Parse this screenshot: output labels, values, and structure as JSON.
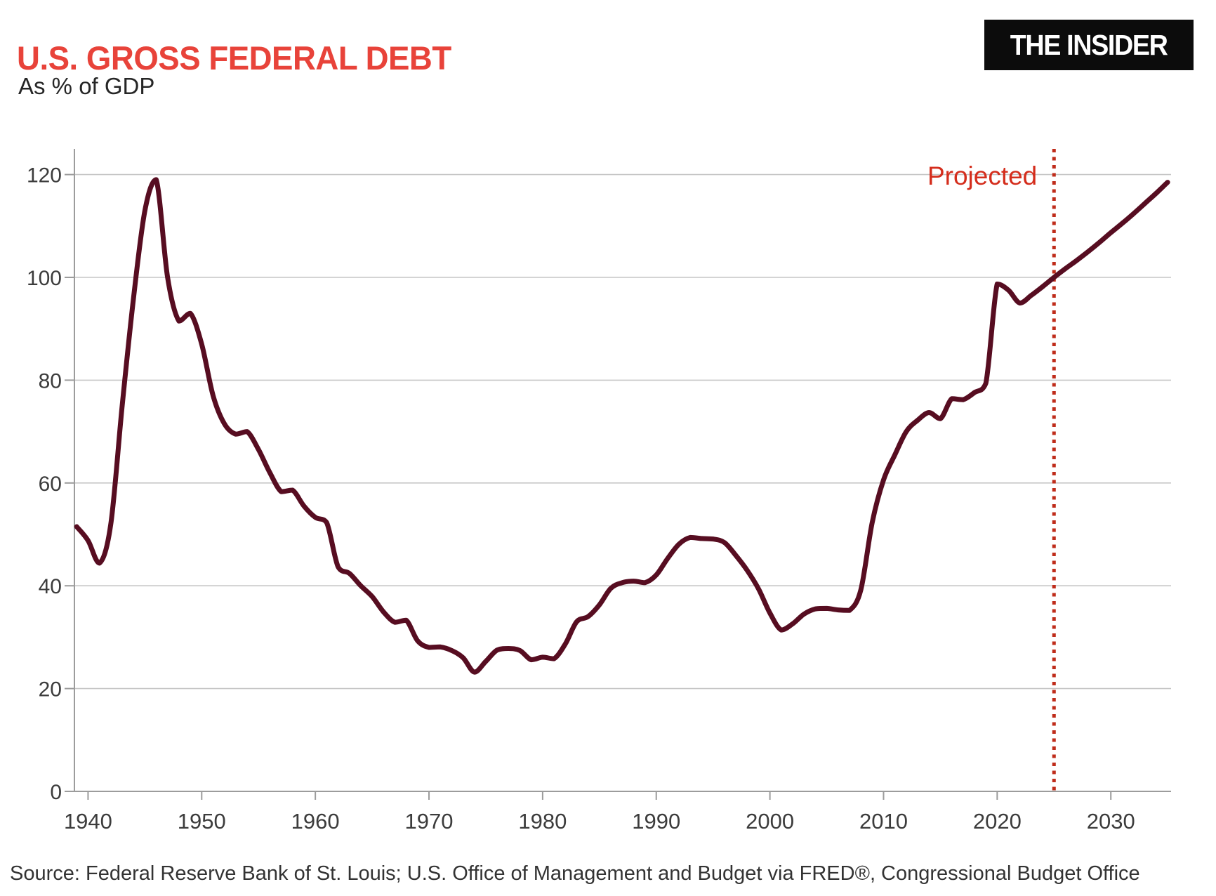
{
  "header": {
    "title": "U.S. GROSS FEDERAL DEBT",
    "subtitle": "As % of GDP",
    "logo_text": "THE INSIDER"
  },
  "footer": {
    "source": "Source: Federal Reserve Bank of St. Louis; U.S. Office of Management and Budget via FRED®, Congressional Budget Office"
  },
  "colors": {
    "title_red": "#e8433a",
    "line_maroon": "#570d21",
    "projection_red": "#d42d1c",
    "projection_dots": "#bf2c1a",
    "grid": "#c6c6c6",
    "axis": "#9c9c9c",
    "tick_text": "#3c3c3c",
    "logo_bg": "#0c0c0c",
    "logo_text": "#ffffff"
  },
  "chart_data": {
    "type": "line",
    "title": "U.S. GROSS FEDERAL DEBT",
    "subtitle": "As % of GDP",
    "xlabel": "",
    "ylabel": "As % of GDP",
    "xlim": [
      1938.8,
      2035.3
    ],
    "ylim": [
      0,
      125
    ],
    "xticks": [
      1940,
      1950,
      1960,
      1970,
      1980,
      1990,
      2000,
      2010,
      2020,
      2030
    ],
    "yticks": [
      0,
      20,
      40,
      60,
      80,
      100,
      120
    ],
    "grid": "horizontal",
    "legend_position": "none",
    "annotations": {
      "projected_label": "Projected",
      "projection_start_year": 2025
    },
    "series": [
      {
        "name": "Gross federal debt as % of GDP",
        "points": [
          [
            1939,
            51.5
          ],
          [
            1940,
            48.8
          ],
          [
            1941,
            44.4
          ],
          [
            1942,
            52.0
          ],
          [
            1943,
            75.0
          ],
          [
            1944,
            96.0
          ],
          [
            1945,
            113.0
          ],
          [
            1946,
            119.0
          ],
          [
            1947,
            100.0
          ],
          [
            1948,
            91.5
          ],
          [
            1949,
            93.0
          ],
          [
            1950,
            87.0
          ],
          [
            1951,
            77.0
          ],
          [
            1952,
            71.5
          ],
          [
            1953,
            69.5
          ],
          [
            1954,
            70.0
          ],
          [
            1955,
            66.5
          ],
          [
            1956,
            62.0
          ],
          [
            1957,
            58.3
          ],
          [
            1958,
            58.6
          ],
          [
            1959,
            55.5
          ],
          [
            1960,
            53.3
          ],
          [
            1961,
            52.3
          ],
          [
            1962,
            43.7
          ],
          [
            1963,
            42.4
          ],
          [
            1964,
            40.0
          ],
          [
            1965,
            37.9
          ],
          [
            1966,
            34.9
          ],
          [
            1967,
            32.9
          ],
          [
            1968,
            33.3
          ],
          [
            1969,
            29.3
          ],
          [
            1970,
            28.0
          ],
          [
            1971,
            28.1
          ],
          [
            1972,
            27.4
          ],
          [
            1973,
            26.0
          ],
          [
            1974,
            23.2
          ],
          [
            1975,
            25.3
          ],
          [
            1976,
            27.5
          ],
          [
            1977,
            27.8
          ],
          [
            1978,
            27.4
          ],
          [
            1979,
            25.6
          ],
          [
            1980,
            26.1
          ],
          [
            1981,
            25.8
          ],
          [
            1982,
            28.7
          ],
          [
            1983,
            33.0
          ],
          [
            1984,
            34.0
          ],
          [
            1985,
            36.3
          ],
          [
            1986,
            39.5
          ],
          [
            1987,
            40.6
          ],
          [
            1988,
            40.9
          ],
          [
            1989,
            40.6
          ],
          [
            1990,
            42.1
          ],
          [
            1991,
            45.3
          ],
          [
            1992,
            48.1
          ],
          [
            1993,
            49.4
          ],
          [
            1994,
            49.2
          ],
          [
            1995,
            49.1
          ],
          [
            1996,
            48.4
          ],
          [
            1997,
            45.9
          ],
          [
            1998,
            43.0
          ],
          [
            1999,
            39.4
          ],
          [
            2000,
            34.7
          ],
          [
            2001,
            31.4
          ],
          [
            2002,
            32.6
          ],
          [
            2003,
            34.5
          ],
          [
            2004,
            35.5
          ],
          [
            2005,
            35.6
          ],
          [
            2006,
            35.3
          ],
          [
            2007,
            35.2
          ],
          [
            2008,
            39.2
          ],
          [
            2009,
            52.3
          ],
          [
            2010,
            60.6
          ],
          [
            2011,
            65.5
          ],
          [
            2012,
            70.0
          ],
          [
            2013,
            72.2
          ],
          [
            2014,
            73.7
          ],
          [
            2015,
            72.5
          ],
          [
            2016,
            76.4
          ],
          [
            2017,
            76.2
          ],
          [
            2018,
            77.6
          ],
          [
            2019,
            79.4
          ],
          [
            2020,
            98.7
          ],
          [
            2021,
            97.5
          ],
          [
            2022,
            95.0
          ],
          [
            2023,
            96.5
          ],
          [
            2024,
            98.2
          ],
          [
            2025,
            100.0
          ],
          [
            2026,
            101.7
          ],
          [
            2027,
            103.3
          ],
          [
            2028,
            105.0
          ],
          [
            2029,
            106.8
          ],
          [
            2030,
            108.7
          ],
          [
            2031,
            110.5
          ],
          [
            2032,
            112.4
          ],
          [
            2033,
            114.4
          ],
          [
            2034,
            116.4
          ],
          [
            2035,
            118.5
          ]
        ]
      }
    ]
  }
}
